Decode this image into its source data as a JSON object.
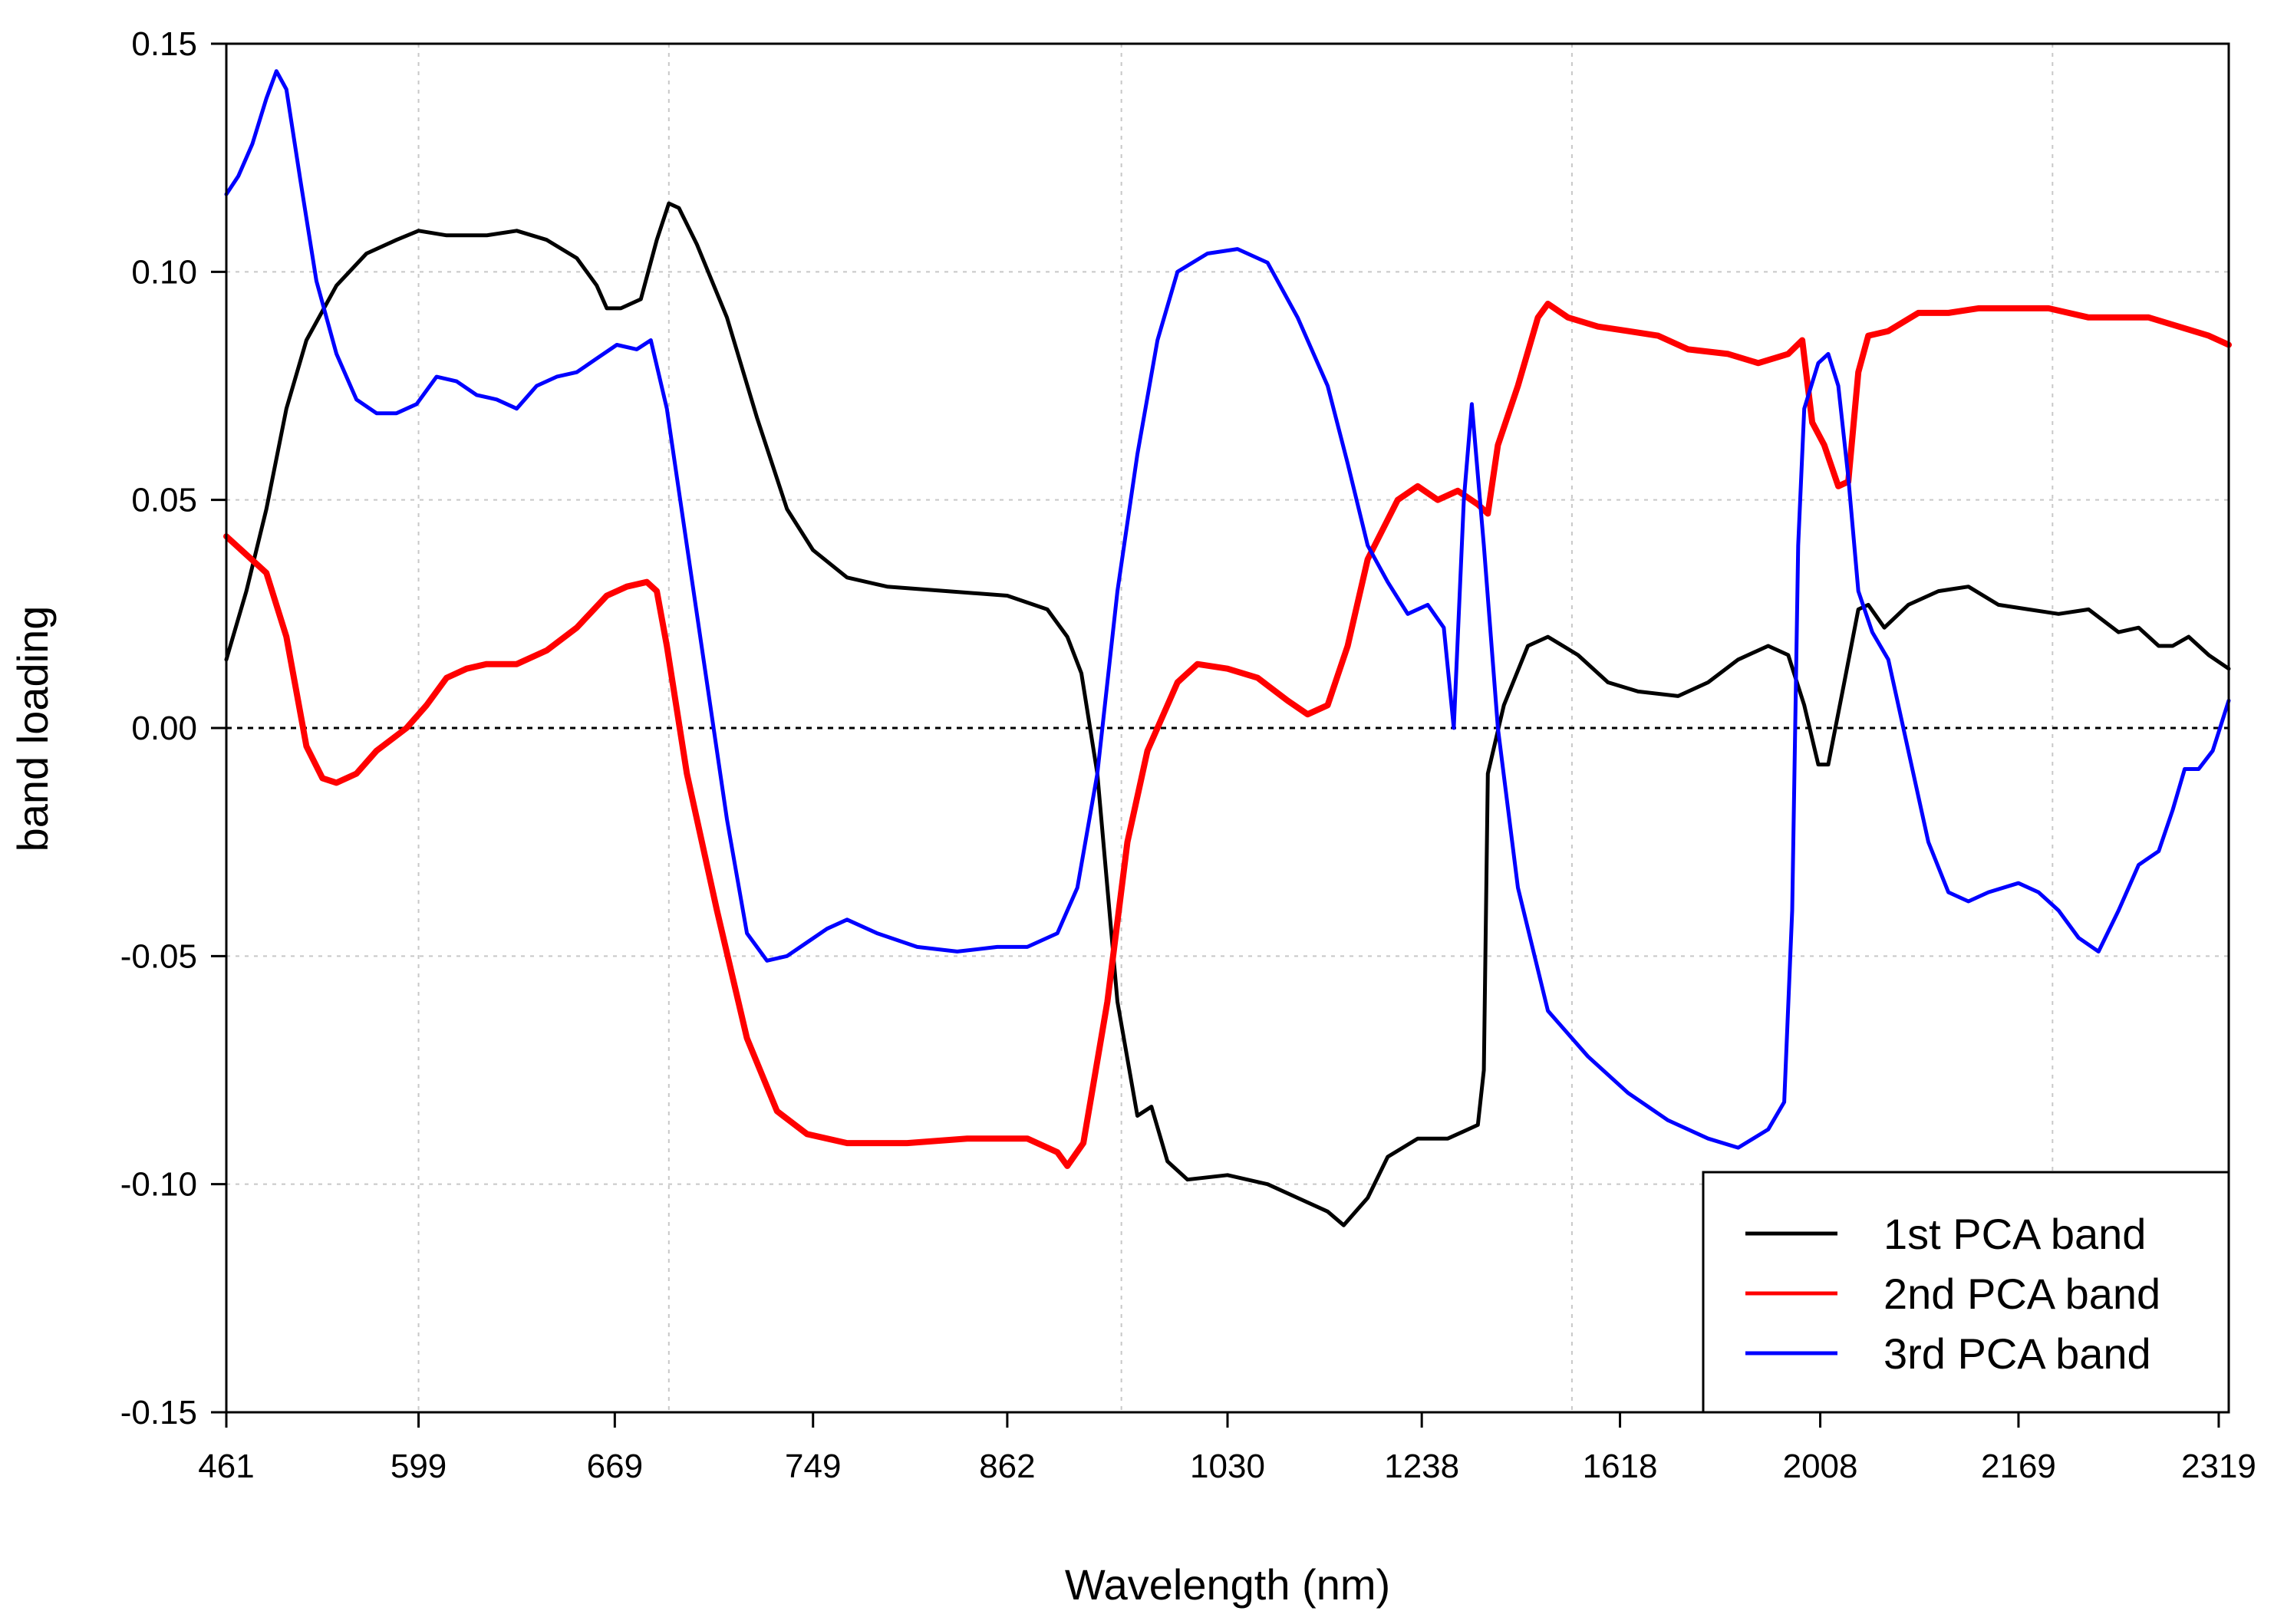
{
  "chart_data": {
    "type": "line",
    "title": "",
    "xlabel": "Wavelength (nm)",
    "ylabel": "band loading",
    "xlim": [
      0,
      10
    ],
    "ylim": [
      -0.15,
      0.15
    ],
    "x_tick_labels": [
      "461",
      "599",
      "669",
      "749",
      "862",
      "1030",
      "1238",
      "1618",
      "2008",
      "2169",
      "2319"
    ],
    "x_tick_positions": [
      0,
      0.96,
      1.94,
      2.93,
      3.9,
      5.0,
      5.97,
      6.96,
      7.96,
      8.95,
      9.95
    ],
    "y_ticks": [
      -0.15,
      -0.1,
      -0.05,
      0.0,
      0.05,
      0.1,
      0.15
    ],
    "y_tick_labels": [
      "-0.15",
      "-0.10",
      "-0.05",
      "0.00",
      "0.05",
      "0.10",
      "0.15"
    ],
    "vertical_gridlines": [
      0.96,
      2.21,
      4.47,
      6.72,
      9.12
    ],
    "zero_line": 0,
    "legend_position": "bottom-right",
    "series": [
      {
        "name": "1st PCA band",
        "color": "#000000",
        "points": [
          [
            0,
            0.015
          ],
          [
            0.1,
            0.03
          ],
          [
            0.2,
            0.048
          ],
          [
            0.3,
            0.07
          ],
          [
            0.4,
            0.085
          ],
          [
            0.55,
            0.097
          ],
          [
            0.7,
            0.104
          ],
          [
            0.85,
            0.107
          ],
          [
            0.96,
            0.109
          ],
          [
            1.1,
            0.108
          ],
          [
            1.3,
            0.108
          ],
          [
            1.45,
            0.109
          ],
          [
            1.6,
            0.107
          ],
          [
            1.75,
            0.103
          ],
          [
            1.85,
            0.097
          ],
          [
            1.9,
            0.092
          ],
          [
            1.97,
            0.092
          ],
          [
            2.07,
            0.094
          ],
          [
            2.15,
            0.107
          ],
          [
            2.21,
            0.115
          ],
          [
            2.26,
            0.114
          ],
          [
            2.35,
            0.106
          ],
          [
            2.5,
            0.09
          ],
          [
            2.65,
            0.068
          ],
          [
            2.8,
            0.048
          ],
          [
            2.93,
            0.039
          ],
          [
            3.1,
            0.033
          ],
          [
            3.3,
            0.031
          ],
          [
            3.6,
            0.03
          ],
          [
            3.9,
            0.029
          ],
          [
            4.1,
            0.026
          ],
          [
            4.2,
            0.02
          ],
          [
            4.27,
            0.012
          ],
          [
            4.35,
            -0.01
          ],
          [
            4.45,
            -0.06
          ],
          [
            4.55,
            -0.085
          ],
          [
            4.62,
            -0.083
          ],
          [
            4.7,
            -0.095
          ],
          [
            4.8,
            -0.099
          ],
          [
            5.0,
            -0.098
          ],
          [
            5.2,
            -0.1
          ],
          [
            5.35,
            -0.103
          ],
          [
            5.5,
            -0.106
          ],
          [
            5.58,
            -0.109
          ],
          [
            5.7,
            -0.103
          ],
          [
            5.8,
            -0.094
          ],
          [
            5.95,
            -0.09
          ],
          [
            6.1,
            -0.09
          ],
          [
            6.25,
            -0.087
          ],
          [
            6.28,
            -0.075
          ],
          [
            6.3,
            -0.01
          ],
          [
            6.38,
            0.005
          ],
          [
            6.5,
            0.018
          ],
          [
            6.6,
            0.02
          ],
          [
            6.75,
            0.016
          ],
          [
            6.9,
            0.01
          ],
          [
            7.05,
            0.008
          ],
          [
            7.25,
            0.007
          ],
          [
            7.4,
            0.01
          ],
          [
            7.55,
            0.015
          ],
          [
            7.7,
            0.018
          ],
          [
            7.8,
            0.016
          ],
          [
            7.88,
            0.005
          ],
          [
            7.95,
            -0.008
          ],
          [
            8.0,
            -0.008
          ],
          [
            8.08,
            0.01
          ],
          [
            8.15,
            0.026
          ],
          [
            8.2,
            0.027
          ],
          [
            8.28,
            0.022
          ],
          [
            8.4,
            0.027
          ],
          [
            8.55,
            0.03
          ],
          [
            8.7,
            0.031
          ],
          [
            8.85,
            0.027
          ],
          [
            9.0,
            0.026
          ],
          [
            9.15,
            0.025
          ],
          [
            9.3,
            0.026
          ],
          [
            9.45,
            0.021
          ],
          [
            9.55,
            0.022
          ],
          [
            9.65,
            0.018
          ],
          [
            9.72,
            0.018
          ],
          [
            9.8,
            0.02
          ],
          [
            9.9,
            0.016
          ],
          [
            10.0,
            0.013
          ]
        ]
      },
      {
        "name": "2nd PCA band",
        "color": "#ff0000",
        "points": [
          [
            0,
            0.042
          ],
          [
            0.1,
            0.038
          ],
          [
            0.2,
            0.034
          ],
          [
            0.3,
            0.02
          ],
          [
            0.4,
            -0.004
          ],
          [
            0.48,
            -0.011
          ],
          [
            0.55,
            -0.012
          ],
          [
            0.65,
            -0.01
          ],
          [
            0.75,
            -0.005
          ],
          [
            0.9,
            0.0
          ],
          [
            1.0,
            0.005
          ],
          [
            1.1,
            0.011
          ],
          [
            1.2,
            0.013
          ],
          [
            1.3,
            0.014
          ],
          [
            1.45,
            0.014
          ],
          [
            1.6,
            0.017
          ],
          [
            1.75,
            0.022
          ],
          [
            1.9,
            0.029
          ],
          [
            2.0,
            0.031
          ],
          [
            2.1,
            0.032
          ],
          [
            2.15,
            0.03
          ],
          [
            2.2,
            0.018
          ],
          [
            2.3,
            -0.01
          ],
          [
            2.45,
            -0.04
          ],
          [
            2.6,
            -0.068
          ],
          [
            2.75,
            -0.084
          ],
          [
            2.9,
            -0.089
          ],
          [
            3.1,
            -0.091
          ],
          [
            3.4,
            -0.091
          ],
          [
            3.7,
            -0.09
          ],
          [
            4.0,
            -0.09
          ],
          [
            4.15,
            -0.093
          ],
          [
            4.2,
            -0.096
          ],
          [
            4.28,
            -0.091
          ],
          [
            4.4,
            -0.06
          ],
          [
            4.5,
            -0.025
          ],
          [
            4.6,
            -0.005
          ],
          [
            4.75,
            0.01
          ],
          [
            4.85,
            0.014
          ],
          [
            5.0,
            0.013
          ],
          [
            5.15,
            0.011
          ],
          [
            5.3,
            0.006
          ],
          [
            5.4,
            0.003
          ],
          [
            5.5,
            0.005
          ],
          [
            5.6,
            0.018
          ],
          [
            5.7,
            0.037
          ],
          [
            5.85,
            0.05
          ],
          [
            5.95,
            0.053
          ],
          [
            6.05,
            0.05
          ],
          [
            6.15,
            0.052
          ],
          [
            6.25,
            0.049
          ],
          [
            6.3,
            0.047
          ],
          [
            6.35,
            0.062
          ],
          [
            6.45,
            0.075
          ],
          [
            6.55,
            0.09
          ],
          [
            6.6,
            0.093
          ],
          [
            6.7,
            0.09
          ],
          [
            6.85,
            0.088
          ],
          [
            7.0,
            0.087
          ],
          [
            7.15,
            0.086
          ],
          [
            7.3,
            0.083
          ],
          [
            7.5,
            0.082
          ],
          [
            7.65,
            0.08
          ],
          [
            7.8,
            0.082
          ],
          [
            7.87,
            0.085
          ],
          [
            7.92,
            0.067
          ],
          [
            7.98,
            0.062
          ],
          [
            8.05,
            0.053
          ],
          [
            8.1,
            0.054
          ],
          [
            8.15,
            0.078
          ],
          [
            8.2,
            0.086
          ],
          [
            8.3,
            0.087
          ],
          [
            8.45,
            0.091
          ],
          [
            8.6,
            0.091
          ],
          [
            8.75,
            0.092
          ],
          [
            8.9,
            0.092
          ],
          [
            9.1,
            0.092
          ],
          [
            9.3,
            0.09
          ],
          [
            9.45,
            0.09
          ],
          [
            9.6,
            0.09
          ],
          [
            9.75,
            0.088
          ],
          [
            9.9,
            0.086
          ],
          [
            10.0,
            0.084
          ]
        ]
      },
      {
        "name": "3rd PCA band",
        "color": "#0000ff",
        "points": [
          [
            0,
            0.117
          ],
          [
            0.06,
            0.121
          ],
          [
            0.13,
            0.128
          ],
          [
            0.2,
            0.138
          ],
          [
            0.25,
            0.144
          ],
          [
            0.3,
            0.14
          ],
          [
            0.37,
            0.12
          ],
          [
            0.45,
            0.098
          ],
          [
            0.55,
            0.082
          ],
          [
            0.65,
            0.072
          ],
          [
            0.75,
            0.069
          ],
          [
            0.85,
            0.069
          ],
          [
            0.95,
            0.071
          ],
          [
            1.05,
            0.077
          ],
          [
            1.15,
            0.076
          ],
          [
            1.25,
            0.073
          ],
          [
            1.35,
            0.072
          ],
          [
            1.45,
            0.07
          ],
          [
            1.55,
            0.075
          ],
          [
            1.65,
            0.077
          ],
          [
            1.75,
            0.078
          ],
          [
            1.85,
            0.081
          ],
          [
            1.95,
            0.084
          ],
          [
            2.05,
            0.083
          ],
          [
            2.12,
            0.085
          ],
          [
            2.2,
            0.07
          ],
          [
            2.3,
            0.04
          ],
          [
            2.4,
            0.01
          ],
          [
            2.5,
            -0.02
          ],
          [
            2.6,
            -0.045
          ],
          [
            2.7,
            -0.051
          ],
          [
            2.8,
            -0.05
          ],
          [
            2.9,
            -0.047
          ],
          [
            3.0,
            -0.044
          ],
          [
            3.1,
            -0.042
          ],
          [
            3.25,
            -0.045
          ],
          [
            3.45,
            -0.048
          ],
          [
            3.65,
            -0.049
          ],
          [
            3.85,
            -0.048
          ],
          [
            4.0,
            -0.048
          ],
          [
            4.15,
            -0.045
          ],
          [
            4.25,
            -0.035
          ],
          [
            4.35,
            -0.01
          ],
          [
            4.45,
            0.03
          ],
          [
            4.55,
            0.06
          ],
          [
            4.65,
            0.085
          ],
          [
            4.75,
            0.1
          ],
          [
            4.9,
            0.104
          ],
          [
            5.05,
            0.105
          ],
          [
            5.2,
            0.102
          ],
          [
            5.35,
            0.09
          ],
          [
            5.5,
            0.075
          ],
          [
            5.6,
            0.058
          ],
          [
            5.7,
            0.04
          ],
          [
            5.8,
            0.032
          ],
          [
            5.9,
            0.025
          ],
          [
            6.0,
            0.027
          ],
          [
            6.08,
            0.022
          ],
          [
            6.13,
            0.0
          ],
          [
            6.18,
            0.05
          ],
          [
            6.22,
            0.071
          ],
          [
            6.28,
            0.04
          ],
          [
            6.35,
            0.0
          ],
          [
            6.45,
            -0.035
          ],
          [
            6.6,
            -0.062
          ],
          [
            6.8,
            -0.072
          ],
          [
            7.0,
            -0.08
          ],
          [
            7.2,
            -0.086
          ],
          [
            7.4,
            -0.09
          ],
          [
            7.55,
            -0.092
          ],
          [
            7.7,
            -0.088
          ],
          [
            7.78,
            -0.082
          ],
          [
            7.82,
            -0.04
          ],
          [
            7.85,
            0.04
          ],
          [
            7.88,
            0.07
          ],
          [
            7.95,
            0.08
          ],
          [
            8.0,
            0.082
          ],
          [
            8.05,
            0.075
          ],
          [
            8.1,
            0.055
          ],
          [
            8.15,
            0.03
          ],
          [
            8.22,
            0.021
          ],
          [
            8.3,
            0.015
          ],
          [
            8.4,
            -0.005
          ],
          [
            8.5,
            -0.025
          ],
          [
            8.6,
            -0.036
          ],
          [
            8.7,
            -0.038
          ],
          [
            8.8,
            -0.036
          ],
          [
            8.95,
            -0.034
          ],
          [
            9.05,
            -0.036
          ],
          [
            9.15,
            -0.04
          ],
          [
            9.25,
            -0.046
          ],
          [
            9.35,
            -0.049
          ],
          [
            9.45,
            -0.04
          ],
          [
            9.55,
            -0.03
          ],
          [
            9.65,
            -0.027
          ],
          [
            9.72,
            -0.018
          ],
          [
            9.78,
            -0.009
          ],
          [
            9.85,
            -0.009
          ],
          [
            9.92,
            -0.005
          ],
          [
            10.0,
            0.006
          ]
        ]
      }
    ]
  }
}
